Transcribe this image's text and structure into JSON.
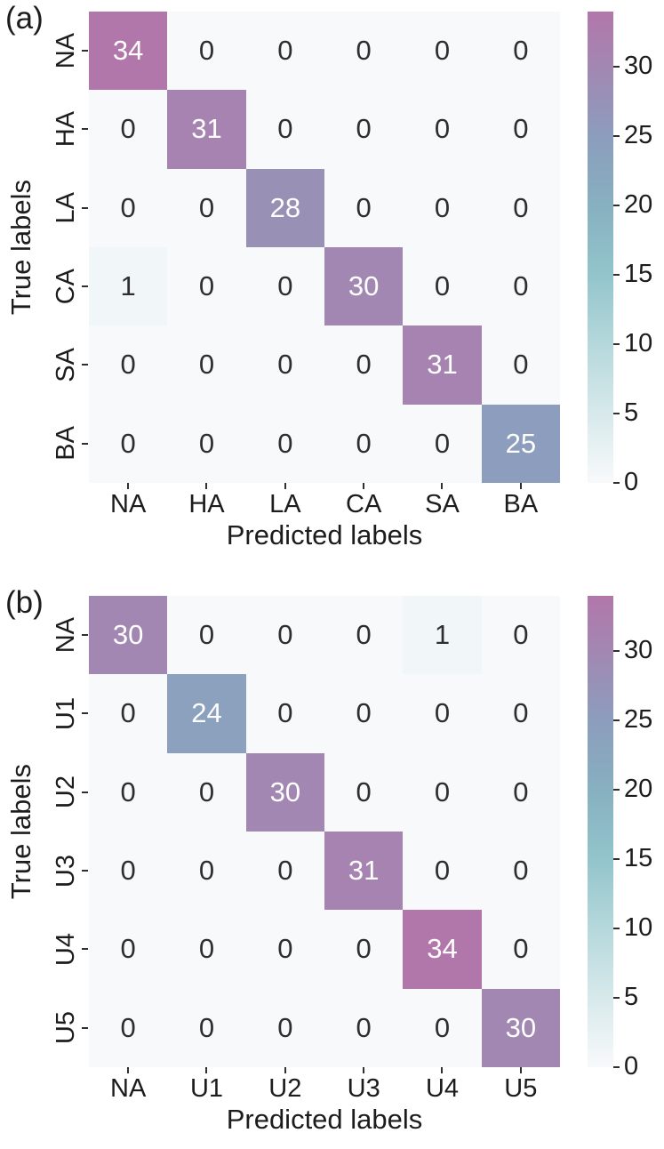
{
  "figure": {
    "background": "#ffffff",
    "axis_text_color": "#1c1c1c"
  },
  "chart_data": [
    {
      "type": "heatmap",
      "panel_label": "(a)",
      "xlabel": "Predicted labels",
      "ylabel": "True labels",
      "x_ticklabels": [
        "NA",
        "HA",
        "LA",
        "CA",
        "SA",
        "BA"
      ],
      "y_ticklabels": [
        "NA",
        "HA",
        "LA",
        "CA",
        "SA",
        "BA"
      ],
      "matrix": [
        [
          34,
          0,
          0,
          0,
          0,
          0
        ],
        [
          0,
          31,
          0,
          0,
          0,
          0
        ],
        [
          0,
          0,
          28,
          0,
          0,
          0
        ],
        [
          1,
          0,
          0,
          30,
          0,
          0
        ],
        [
          0,
          0,
          0,
          0,
          31,
          0
        ],
        [
          0,
          0,
          0,
          0,
          0,
          25
        ]
      ],
      "colorbar": {
        "ticks": [
          0,
          5,
          10,
          15,
          20,
          25,
          30
        ],
        "vmin": 0,
        "vmax": 34,
        "position": "right"
      }
    },
    {
      "type": "heatmap",
      "panel_label": "(b)",
      "xlabel": "Predicted labels",
      "ylabel": "True labels",
      "x_ticklabels": [
        "NA",
        "U1",
        "U2",
        "U3",
        "U4",
        "U5"
      ],
      "y_ticklabels": [
        "NA",
        "U1",
        "U2",
        "U3",
        "U4",
        "U5"
      ],
      "matrix": [
        [
          30,
          0,
          0,
          0,
          1,
          0
        ],
        [
          0,
          24,
          0,
          0,
          0,
          0
        ],
        [
          0,
          0,
          30,
          0,
          0,
          0
        ],
        [
          0,
          0,
          0,
          31,
          0,
          0
        ],
        [
          0,
          0,
          0,
          0,
          34,
          0
        ],
        [
          0,
          0,
          0,
          0,
          0,
          30
        ]
      ],
      "colorbar": {
        "ticks": [
          0,
          5,
          10,
          15,
          20,
          25,
          30
        ],
        "vmin": 0,
        "vmax": 34,
        "position": "right"
      }
    }
  ],
  "colormap": {
    "stops": [
      {
        "v": 0,
        "color": "#f8f9fb"
      },
      {
        "v": 5,
        "color": "#d7e9eb"
      },
      {
        "v": 10,
        "color": "#b5d8dc"
      },
      {
        "v": 15,
        "color": "#93c4cb"
      },
      {
        "v": 20,
        "color": "#87b0c0"
      },
      {
        "v": 25,
        "color": "#8c9dbd"
      },
      {
        "v": 30,
        "color": "#a287b2"
      },
      {
        "v": 34,
        "color": "#b277aa"
      }
    ],
    "annotation_light_color": "#ffffff",
    "annotation_dark_color": "#2e2e2e",
    "light_text_threshold": 17
  }
}
